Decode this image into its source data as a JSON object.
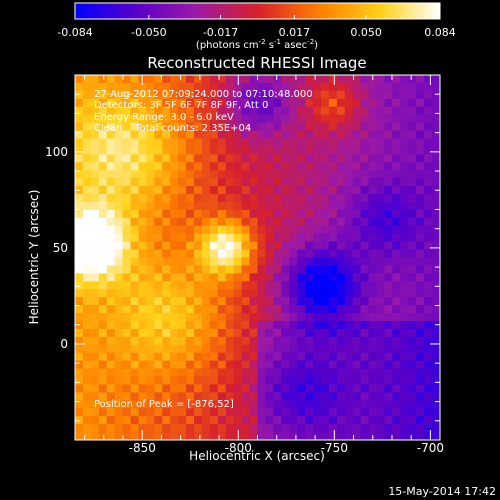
{
  "colorbar": {
    "tick_labels": [
      "-0.084",
      "-0.050",
      "-0.017",
      "0.017",
      "0.050",
      "0.084"
    ],
    "units": "(photons cm",
    "units_exp1": "-2",
    "units_mid": " s",
    "units_exp2": "-1",
    "units_mid2": " asec",
    "units_exp3": "-2",
    "units_end": ")"
  },
  "title": "Reconstructed RHESSI Image",
  "annotations": {
    "time_range": "27-Aug-2012 07:09:24.000 to 07:10:48.000",
    "detectors": "Detectors: 3F 5F 6F 7F 8F 9F, Att 0",
    "energy": "Energy Range: 3.0 - 6.0 keV",
    "clean": "Clean    Total counts: 2.35E+04",
    "peak": "Position of Peak = [-876,52]"
  },
  "timestamp": "15-May-2014 17:42",
  "chart_data": {
    "type": "heatmap",
    "title": "Reconstructed RHESSI Image",
    "xlabel": "Heliocentric X (arcsec)",
    "ylabel": "Heliocentric Y (arcsec)",
    "xlim": [
      -885,
      -695
    ],
    "ylim": [
      -50,
      140
    ],
    "x_ticks": [
      -850,
      -800,
      -750,
      -700
    ],
    "x_tick_labels": [
      "-850",
      "-800",
      "-750",
      "-700"
    ],
    "y_ticks": [
      0,
      50,
      100
    ],
    "y_tick_labels": [
      "0",
      "50",
      "100"
    ],
    "value_range": [
      -0.084,
      0.084
    ],
    "colormap": [
      "#0000ff",
      "#5a00c8",
      "#9b19a8",
      "#d8202c",
      "#ff7f00",
      "#ffd21a",
      "#ffffff"
    ],
    "sources": [
      {
        "x": -876,
        "y": 52,
        "peak": 0.084,
        "sigma": 13
      },
      {
        "x": -806,
        "y": 50,
        "peak": 0.078,
        "sigma": 10
      },
      {
        "x": -858,
        "y": 100,
        "peak": 0.045,
        "sigma": 22
      },
      {
        "x": -835,
        "y": 15,
        "peak": 0.04,
        "sigma": 22
      },
      {
        "x": -750,
        "y": 125,
        "peak": 0.035,
        "sigma": 10
      },
      {
        "x": -757,
        "y": 30,
        "peak": -0.075,
        "sigma": 14
      },
      {
        "x": -790,
        "y": 125,
        "peak": -0.045,
        "sigma": 12
      },
      {
        "x": -725,
        "y": 65,
        "peak": -0.03,
        "sigma": 14
      },
      {
        "x": -768,
        "y": -25,
        "peak": -0.03,
        "sigma": 16
      }
    ]
  }
}
